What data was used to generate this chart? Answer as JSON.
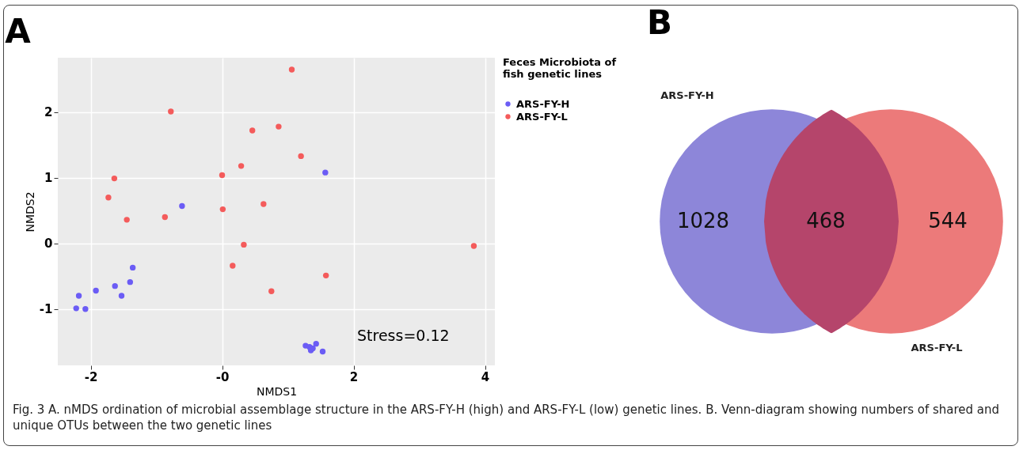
{
  "chart_data": [
    {
      "type": "scatter",
      "title": "A",
      "xlabel": "NMDS1",
      "ylabel": "NMDS2",
      "legend_title": "Feces Microbiota of fish genetic lines",
      "legend": "right",
      "marker": "circle",
      "grid": true,
      "xlim": [
        -2.5,
        4.15
      ],
      "ylim": [
        -1.86,
        2.83
      ],
      "xticks": [
        -2,
        {
          "value": 0,
          "label": "-0"
        },
        2,
        4
      ],
      "yticks": [
        -1,
        0,
        1,
        2
      ],
      "series": [
        {
          "name": "ARS-FY-H",
          "color": "#6b5cf5",
          "x": [
            -0.61,
            1.57,
            -1.36,
            -1.4,
            -1.63,
            -1.53,
            -1.92,
            -2.18,
            -2.22,
            -2.08,
            1.27,
            1.33,
            1.35,
            1.43,
            1.53,
            1.38
          ],
          "values": [
            0.57,
            1.08,
            -0.37,
            -0.59,
            -0.65,
            -0.8,
            -0.72,
            -0.8,
            -0.99,
            -1.0,
            -1.56,
            -1.58,
            -1.63,
            -1.53,
            -1.65,
            -1.6
          ]
        },
        {
          "name": "ARS-FY-L",
          "color": "#f45b5b",
          "x": [
            1.06,
            -0.78,
            0.46,
            0.86,
            1.2,
            0.29,
            0,
            -1.64,
            -1.73,
            0.63,
            0.01,
            -1.45,
            -0.87,
            0.33,
            0.16,
            1.58,
            0.75,
            3.83
          ],
          "values": [
            2.65,
            2.01,
            1.72,
            1.78,
            1.33,
            1.18,
            1.04,
            0.99,
            0.7,
            0.6,
            0.52,
            0.36,
            0.4,
            -0.02,
            -0.34,
            -0.49,
            -0.73,
            -0.04
          ]
        }
      ],
      "annotations": [
        "Stress=0.12",
        "Fig. 3 A. nMDS ordination of microbial assemblage structure in the ARS-FY-H (high) and ARS-FY-L (low) genetic lines. B. Venn-diagram showing numbers of shared and unique OTUs between the two genetic lines"
      ]
    },
    {
      "type": "other",
      "title": "B",
      "categories": [
        "ARS-FY-H",
        null,
        "ARS-FY-L"
      ],
      "values": [
        1028,
        468,
        544
      ],
      "colors": [
        "#8d86d9",
        "#b5456b",
        "#ec7a7a"
      ],
      "data_labels": true
    }
  ]
}
